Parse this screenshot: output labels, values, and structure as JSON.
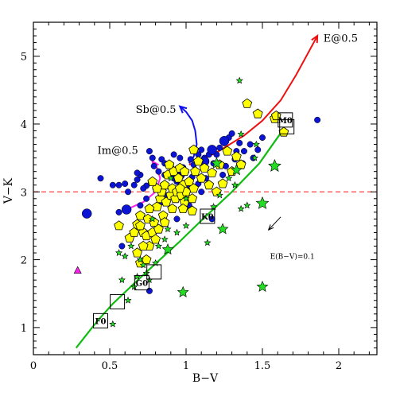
{
  "chart_data": {
    "type": "scatter",
    "title": "",
    "xlabel": "B−V",
    "ylabel": "V−K",
    "xlim": [
      0,
      2.25
    ],
    "ylim": [
      0.6,
      5.5
    ],
    "x_ticks": [
      0,
      0.5,
      1,
      1.5,
      2
    ],
    "x_tick_labels": [
      "0",
      "0.5",
      "1",
      "1.5",
      "2"
    ],
    "y_ticks": [
      1,
      2,
      3,
      4,
      5
    ],
    "y_tick_labels": [
      "1",
      "2",
      "3",
      "4",
      "5"
    ],
    "grid": false,
    "colors": {
      "blue": "#0a14d2",
      "yellow": "#ffff00",
      "green": "#22dd22",
      "red": "#ee1111",
      "magenta": "#ff22ee",
      "dashed": "#ff4040"
    },
    "reference_line": {
      "y": 3.0,
      "style": "dashed",
      "color": "#ff4040"
    },
    "main_sequence": {
      "color": "#11bb11",
      "points": [
        [
          0.28,
          0.7
        ],
        [
          0.42,
          1.1
        ],
        [
          0.52,
          1.35
        ],
        [
          0.66,
          1.65
        ],
        [
          0.78,
          1.9
        ],
        [
          0.95,
          2.25
        ],
        [
          1.12,
          2.62
        ],
        [
          1.3,
          3.0
        ],
        [
          1.48,
          3.42
        ],
        [
          1.64,
          3.93
        ]
      ]
    },
    "spectral_types": [
      {
        "label": "F0",
        "x": 0.44,
        "y": 1.1
      },
      {
        "label": "",
        "x": 0.55,
        "y": 1.38
      },
      {
        "label": "G0",
        "x": 0.71,
        "y": 1.66
      },
      {
        "label": "",
        "x": 0.79,
        "y": 1.82
      },
      {
        "label": "K0",
        "x": 1.14,
        "y": 2.64
      },
      {
        "label": "M0",
        "x": 1.65,
        "y": 4.06
      },
      {
        "label": "",
        "x": 1.66,
        "y": 3.96
      }
    ],
    "tracks": [
      {
        "label": "E@0.5",
        "color": "#ee1111",
        "label_x": 1.9,
        "label_y": 5.27,
        "points": [
          [
            1.02,
            3.4
          ],
          [
            1.2,
            3.58
          ],
          [
            1.38,
            3.83
          ],
          [
            1.5,
            4.05
          ],
          [
            1.62,
            4.35
          ],
          [
            1.72,
            4.72
          ],
          [
            1.8,
            5.05
          ],
          [
            1.86,
            5.3
          ]
        ]
      },
      {
        "label": "Sb@0.5",
        "color": "#1010ee",
        "label_x": 0.67,
        "label_y": 4.22,
        "points": [
          [
            1.02,
            3.42
          ],
          [
            1.05,
            3.52
          ],
          [
            1.07,
            3.7
          ],
          [
            1.06,
            3.9
          ],
          [
            1.04,
            4.05
          ],
          [
            1.0,
            4.18
          ],
          [
            0.96,
            4.26
          ]
        ]
      },
      {
        "label": "Im@0.5",
        "color": "#ff22ee",
        "label_x": 0.42,
        "label_y": 3.62,
        "points": [
          [
            0.6,
            2.73
          ],
          [
            0.72,
            2.85
          ],
          [
            0.8,
            3.0
          ],
          [
            0.83,
            3.2
          ],
          [
            0.81,
            3.35
          ],
          [
            0.78,
            3.45
          ]
        ]
      }
    ],
    "reddening_vector": {
      "label": "E(B−V)=0.1",
      "x_start": 1.62,
      "y_start": 2.63,
      "x_end": 1.54,
      "y_end": 2.44,
      "label_x": 1.55,
      "label_y": 2.06
    },
    "series": [
      {
        "kind": "blue-circle",
        "points": [
          [
            0.44,
            3.2
          ],
          [
            0.52,
            3.1
          ],
          [
            0.56,
            3.1
          ],
          [
            0.6,
            3.12
          ],
          [
            0.66,
            3.1
          ],
          [
            0.68,
            3.18
          ],
          [
            0.7,
            3.25
          ],
          [
            0.74,
            3.09
          ],
          [
            0.77,
            3.15
          ],
          [
            0.72,
            3.05
          ],
          [
            0.79,
            3.38
          ],
          [
            0.82,
            3.3
          ],
          [
            0.84,
            3.48
          ],
          [
            0.86,
            3.42
          ],
          [
            0.9,
            3.4
          ],
          [
            0.92,
            3.55
          ],
          [
            0.96,
            3.5
          ],
          [
            0.98,
            3.36
          ],
          [
            1.0,
            3.3
          ],
          [
            1.03,
            3.48
          ],
          [
            1.05,
            3.4
          ],
          [
            1.08,
            3.55
          ],
          [
            1.1,
            3.62
          ],
          [
            1.12,
            3.5
          ],
          [
            1.15,
            3.55
          ],
          [
            1.18,
            3.42
          ],
          [
            1.2,
            3.55
          ],
          [
            1.22,
            3.65
          ],
          [
            1.25,
            3.72
          ],
          [
            1.28,
            3.8
          ],
          [
            1.3,
            3.86
          ],
          [
            1.33,
            3.6
          ],
          [
            1.35,
            3.72
          ],
          [
            1.38,
            3.6
          ],
          [
            1.42,
            3.7
          ],
          [
            1.44,
            3.5
          ],
          [
            1.47,
            3.62
          ],
          [
            1.5,
            3.8
          ],
          [
            1.86,
            4.06
          ],
          [
            0.76,
            3.6
          ],
          [
            0.68,
            3.28
          ],
          [
            0.86,
            3.25
          ],
          [
            0.94,
            3.15
          ],
          [
            1.04,
            3.22
          ],
          [
            1.13,
            3.2
          ],
          [
            1.26,
            3.38
          ],
          [
            1.37,
            3.42
          ],
          [
            0.56,
            2.7
          ],
          [
            0.62,
            3.0
          ],
          [
            0.7,
            2.8
          ],
          [
            0.74,
            2.9
          ],
          [
            0.8,
            3.05
          ],
          [
            0.84,
            2.85
          ],
          [
            0.88,
            2.95
          ],
          [
            0.92,
            3.2
          ],
          [
            0.94,
            2.6
          ],
          [
            1.02,
            2.8
          ],
          [
            1.1,
            3.0
          ],
          [
            0.76,
            1.54
          ],
          [
            0.58,
            2.2
          ],
          [
            1.17,
            2.6
          ],
          [
            1.24,
            3.25
          ],
          [
            1.32,
            3.48
          ],
          [
            1.08,
            3.12
          ],
          [
            0.78,
            3.5
          ]
        ],
        "sizes": [
          5,
          5,
          5,
          5,
          5,
          5,
          5,
          5,
          5,
          5,
          5,
          5,
          5,
          5,
          5,
          5,
          5,
          5,
          5,
          5,
          5,
          5,
          5,
          5,
          5,
          5,
          5,
          5,
          5,
          5,
          5,
          5,
          5,
          5,
          5,
          5,
          5,
          5,
          5,
          5,
          5,
          5,
          5,
          5,
          5,
          5,
          5,
          5,
          5,
          5,
          5,
          5,
          5,
          5,
          5,
          5,
          5,
          5,
          5,
          5,
          5,
          5,
          5,
          5,
          5
        ]
      },
      {
        "kind": "blue-circle-large",
        "points": [
          [
            0.35,
            2.68
          ],
          [
            0.61,
            2.74
          ],
          [
            1.12,
            3.45
          ],
          [
            1.17,
            3.62
          ],
          [
            1.25,
            3.75
          ],
          [
            1.0,
            3.1
          ],
          [
            0.96,
            3.25
          ]
        ]
      },
      {
        "kind": "yellow-pentagon",
        "points": [
          [
            0.56,
            2.5
          ],
          [
            0.63,
            2.32
          ],
          [
            0.68,
            2.52
          ],
          [
            0.7,
            2.65
          ],
          [
            0.72,
            2.4
          ],
          [
            0.74,
            2.35
          ],
          [
            0.75,
            2.6
          ],
          [
            0.76,
            2.2
          ],
          [
            0.78,
            2.4
          ],
          [
            0.79,
            2.55
          ],
          [
            0.8,
            2.3
          ],
          [
            0.81,
            2.78
          ],
          [
            0.82,
            2.45
          ],
          [
            0.83,
            2.9
          ],
          [
            0.84,
            3.0
          ],
          [
            0.85,
            2.65
          ],
          [
            0.86,
            3.1
          ],
          [
            0.87,
            2.85
          ],
          [
            0.88,
            3.25
          ],
          [
            0.89,
            3.4
          ],
          [
            0.9,
            2.95
          ],
          [
            0.91,
            3.05
          ],
          [
            0.92,
            3.3
          ],
          [
            0.93,
            2.9
          ],
          [
            0.94,
            3.0
          ],
          [
            0.95,
            3.2
          ],
          [
            0.96,
            3.35
          ],
          [
            0.97,
            2.95
          ],
          [
            0.98,
            3.1
          ],
          [
            0.99,
            2.85
          ],
          [
            1.0,
            3.0
          ],
          [
            1.02,
            3.15
          ],
          [
            1.04,
            2.9
          ],
          [
            1.05,
            3.05
          ],
          [
            1.06,
            3.3
          ],
          [
            1.08,
            3.45
          ],
          [
            1.1,
            3.2
          ],
          [
            1.12,
            3.35
          ],
          [
            1.15,
            3.1
          ],
          [
            1.17,
            3.28
          ],
          [
            1.2,
            3.0
          ],
          [
            1.22,
            3.4
          ],
          [
            1.24,
            3.12
          ],
          [
            1.27,
            3.6
          ],
          [
            1.3,
            3.3
          ],
          [
            1.33,
            3.52
          ],
          [
            1.36,
            3.4
          ],
          [
            1.4,
            4.3
          ],
          [
            1.47,
            4.15
          ],
          [
            1.58,
            4.08
          ],
          [
            1.64,
            3.88
          ],
          [
            1.59,
            4.12
          ],
          [
            1.05,
            3.62
          ],
          [
            0.68,
            2.1
          ],
          [
            0.7,
            1.95
          ],
          [
            0.74,
            2.0
          ],
          [
            0.7,
            2.5
          ],
          [
            0.76,
            2.75
          ],
          [
            0.66,
            2.4
          ],
          [
            0.86,
            2.55
          ],
          [
            0.91,
            2.75
          ],
          [
            0.98,
            2.75
          ],
          [
            1.04,
            2.72
          ],
          [
            0.96,
            3.05
          ],
          [
            0.99,
            3.3
          ],
          [
            0.81,
            3.05
          ],
          [
            0.78,
            3.15
          ],
          [
            0.72,
            2.2
          ]
        ]
      },
      {
        "kind": "green-star",
        "points": [
          [
            1.35,
            4.64
          ],
          [
            1.33,
            3.32
          ],
          [
            1.58,
            3.38
          ],
          [
            1.5,
            2.83
          ],
          [
            1.4,
            2.8
          ],
          [
            1.36,
            2.75
          ],
          [
            1.24,
            2.45
          ],
          [
            1.14,
            2.25
          ],
          [
            0.88,
            2.15
          ],
          [
            0.98,
            1.52
          ],
          [
            1.5,
            1.6
          ],
          [
            0.64,
            2.2
          ],
          [
            0.6,
            2.05
          ],
          [
            0.72,
            1.92
          ],
          [
            0.74,
            1.8
          ],
          [
            0.68,
            1.75
          ],
          [
            0.66,
            1.6
          ],
          [
            0.62,
            1.4
          ],
          [
            0.52,
            1.05
          ],
          [
            0.56,
            2.1
          ],
          [
            0.7,
            2.0
          ],
          [
            0.78,
            2.6
          ],
          [
            0.82,
            2.2
          ],
          [
            0.86,
            2.3
          ],
          [
            0.8,
            1.95
          ],
          [
            0.76,
            1.7
          ],
          [
            0.58,
            1.7
          ],
          [
            1.2,
            3.42
          ],
          [
            1.32,
            3.1
          ],
          [
            1.45,
            3.5
          ],
          [
            1.46,
            3.7
          ],
          [
            1.28,
            3.2
          ],
          [
            1.22,
            2.95
          ],
          [
            0.88,
            2.45
          ],
          [
            0.94,
            2.4
          ],
          [
            1.0,
            2.5
          ],
          [
            1.18,
            2.78
          ],
          [
            1.36,
            3.85
          ],
          [
            1.0,
            2.9
          ],
          [
            0.9,
            3.2
          ]
        ],
        "sizes": [
          4,
          7,
          8,
          8,
          4,
          4,
          7,
          4,
          7,
          7,
          7,
          4,
          4,
          4,
          4,
          4,
          4,
          4,
          4,
          4,
          4,
          4,
          4,
          4,
          4,
          4,
          4,
          7,
          4,
          4,
          4,
          4,
          4,
          4,
          4,
          4,
          4,
          4,
          4,
          4
        ]
      },
      {
        "kind": "magenta-triangle",
        "points": [
          [
            0.29,
            1.84
          ]
        ]
      }
    ]
  }
}
